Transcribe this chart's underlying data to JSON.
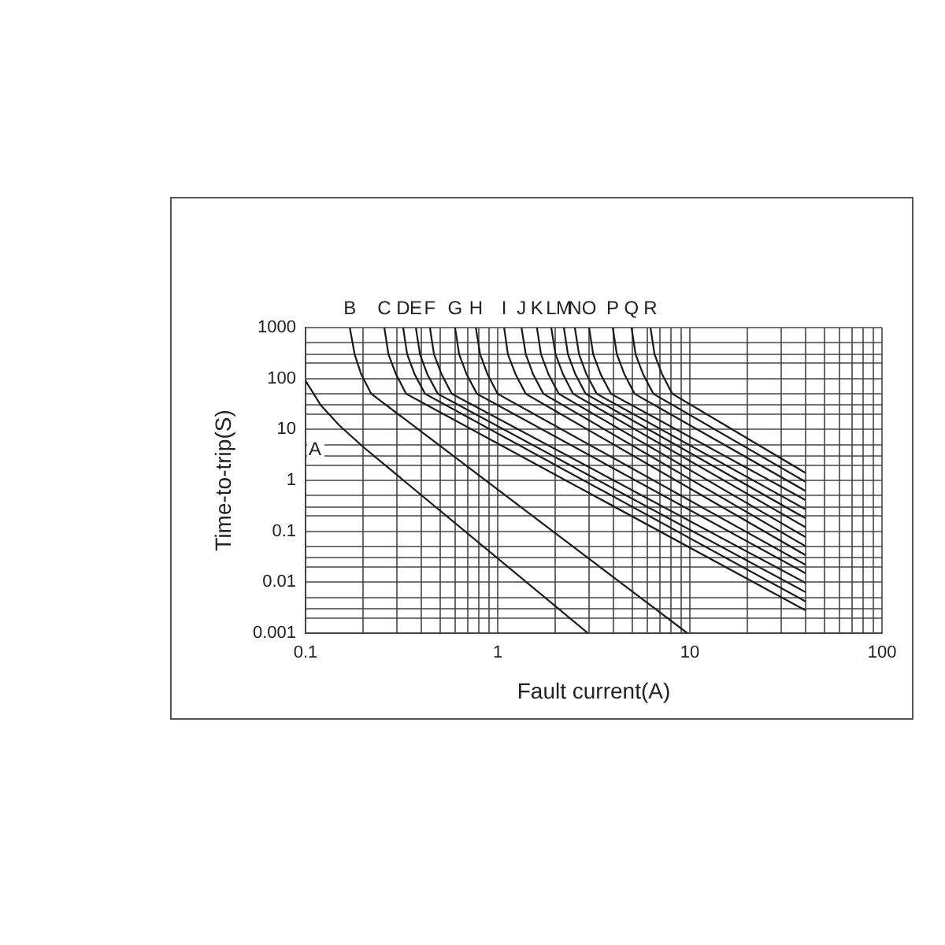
{
  "chart_data": {
    "type": "line",
    "xlabel": "Fault current(A)",
    "ylabel": "Time-to-trip(S)",
    "log": "xy",
    "grid": true,
    "marker": "none",
    "line_style": "solid",
    "xlim": [
      0.1,
      100
    ],
    "ylim": [
      0.001,
      1000
    ],
    "xticks": [
      {
        "value": 0.1,
        "label": "0.1"
      },
      {
        "value": 0.2,
        "label": null
      },
      {
        "value": 0.3,
        "label": null
      },
      {
        "value": 0.4,
        "label": null
      },
      {
        "value": 0.5,
        "label": null
      },
      {
        "value": 0.6,
        "label": null
      },
      {
        "value": 0.7,
        "label": null
      },
      {
        "value": 0.8,
        "label": null
      },
      {
        "value": 0.9,
        "label": null
      },
      {
        "value": 1,
        "label": "1"
      },
      {
        "value": 2,
        "label": null
      },
      {
        "value": 3,
        "label": null
      },
      {
        "value": 4,
        "label": null
      },
      {
        "value": 5,
        "label": null
      },
      {
        "value": 6,
        "label": null
      },
      {
        "value": 7,
        "label": null
      },
      {
        "value": 8,
        "label": null
      },
      {
        "value": 9,
        "label": null
      },
      {
        "value": 10,
        "label": "10"
      },
      {
        "value": 20,
        "label": null
      },
      {
        "value": 30,
        "label": null
      },
      {
        "value": 40,
        "label": null
      },
      {
        "value": 50,
        "label": null
      },
      {
        "value": 60,
        "label": null
      },
      {
        "value": 70,
        "label": null
      },
      {
        "value": 80,
        "label": null
      },
      {
        "value": 90,
        "label": null
      },
      {
        "value": 100,
        "label": "100"
      }
    ],
    "yticks": [
      {
        "value": 0.001,
        "label": "0.001"
      },
      {
        "value": 0.002,
        "label": null
      },
      {
        "value": 0.003,
        "label": null
      },
      {
        "value": 0.005,
        "label": null
      },
      {
        "value": 0.01,
        "label": "0.01"
      },
      {
        "value": 0.02,
        "label": null
      },
      {
        "value": 0.03,
        "label": null
      },
      {
        "value": 0.05,
        "label": null
      },
      {
        "value": 0.1,
        "label": "0.1"
      },
      {
        "value": 0.2,
        "label": null
      },
      {
        "value": 0.3,
        "label": null
      },
      {
        "value": 0.5,
        "label": null
      },
      {
        "value": 1,
        "label": "1"
      },
      {
        "value": 2,
        "label": null
      },
      {
        "value": 3,
        "label": null
      },
      {
        "value": 5,
        "label": null
      },
      {
        "value": 10,
        "label": "10"
      },
      {
        "value": 20,
        "label": null
      },
      {
        "value": 30,
        "label": null
      },
      {
        "value": 50,
        "label": null
      },
      {
        "value": 100,
        "label": "100"
      },
      {
        "value": 200,
        "label": null
      },
      {
        "value": 300,
        "label": null
      },
      {
        "value": 500,
        "label": null
      },
      {
        "value": 1000,
        "label": "1000"
      }
    ],
    "series": [
      {
        "name": "A",
        "color": "#1a1a1a",
        "x": [
          0.1,
          0.12,
          0.15,
          0.2,
          2.95
        ],
        "values": [
          90,
          30,
          12,
          4.5,
          0.001
        ]
      },
      {
        "name": "B",
        "color": "#1a1a1a",
        "x": [
          0.17,
          0.18,
          0.195,
          0.22,
          9.7
        ],
        "values": [
          1000,
          300,
          120,
          50,
          0.001
        ]
      },
      {
        "name": "C",
        "color": "#1a1a1a",
        "x": [
          0.257,
          0.27,
          0.296,
          0.334,
          40
        ],
        "values": [
          1000,
          300,
          120,
          50,
          0.0028
        ]
      },
      {
        "name": "D",
        "color": "#1a1a1a",
        "x": [
          0.322,
          0.338,
          0.37,
          0.419,
          40
        ],
        "values": [
          1000,
          300,
          120,
          50,
          0.0042
        ]
      },
      {
        "name": "E",
        "color": "#1a1a1a",
        "x": [
          0.375,
          0.394,
          0.431,
          0.488,
          40
        ],
        "values": [
          1000,
          300,
          120,
          50,
          0.0064
        ]
      },
      {
        "name": "F",
        "color": "#1a1a1a",
        "x": [
          0.444,
          0.466,
          0.511,
          0.577,
          40
        ],
        "values": [
          1000,
          300,
          120,
          50,
          0.0097
        ]
      },
      {
        "name": "G",
        "color": "#1a1a1a",
        "x": [
          0.6,
          0.63,
          0.69,
          0.78,
          40
        ],
        "values": [
          1000,
          300,
          120,
          50,
          0.015
        ]
      },
      {
        "name": "H",
        "color": "#1a1a1a",
        "x": [
          0.77,
          0.81,
          0.886,
          1.0,
          40
        ],
        "values": [
          1000,
          300,
          120,
          50,
          0.022
        ]
      },
      {
        "name": "I",
        "color": "#1a1a1a",
        "x": [
          1.08,
          1.13,
          1.24,
          1.4,
          40
        ],
        "values": [
          1000,
          300,
          120,
          50,
          0.034
        ]
      },
      {
        "name": "J",
        "color": "#1a1a1a",
        "x": [
          1.33,
          1.4,
          1.53,
          1.73,
          40
        ],
        "values": [
          1000,
          300,
          120,
          50,
          0.051
        ]
      },
      {
        "name": "K",
        "color": "#1a1a1a",
        "x": [
          1.6,
          1.68,
          1.84,
          2.08,
          40
        ],
        "values": [
          1000,
          300,
          120,
          50,
          0.077
        ]
      },
      {
        "name": "L",
        "color": "#1a1a1a",
        "x": [
          1.9,
          2.0,
          2.19,
          2.47,
          40
        ],
        "values": [
          1000,
          300,
          120,
          50,
          0.12
        ]
      },
      {
        "name": "M",
        "color": "#1a1a1a",
        "x": [
          2.21,
          2.32,
          2.54,
          2.87,
          40
        ],
        "values": [
          1000,
          300,
          120,
          50,
          0.18
        ]
      },
      {
        "name": "N",
        "color": "#1a1a1a",
        "x": [
          2.52,
          2.65,
          2.9,
          3.28,
          40
        ],
        "values": [
          1000,
          300,
          120,
          50,
          0.27
        ]
      },
      {
        "name": "O",
        "color": "#1a1a1a",
        "x": [
          2.99,
          3.14,
          3.44,
          3.89,
          40
        ],
        "values": [
          1000,
          300,
          120,
          50,
          0.41
        ]
      },
      {
        "name": "P",
        "color": "#1a1a1a",
        "x": [
          3.97,
          4.17,
          4.57,
          5.16,
          40
        ],
        "values": [
          1000,
          300,
          120,
          50,
          0.62
        ]
      },
      {
        "name": "Q",
        "color": "#1a1a1a",
        "x": [
          4.97,
          5.22,
          5.72,
          6.46,
          40
        ],
        "values": [
          1000,
          300,
          120,
          50,
          0.94
        ]
      },
      {
        "name": "R",
        "color": "#1a1a1a",
        "x": [
          6.24,
          6.55,
          7.18,
          8.11,
          40
        ],
        "values": [
          1000,
          300,
          120,
          50,
          1.4
        ]
      }
    ]
  }
}
